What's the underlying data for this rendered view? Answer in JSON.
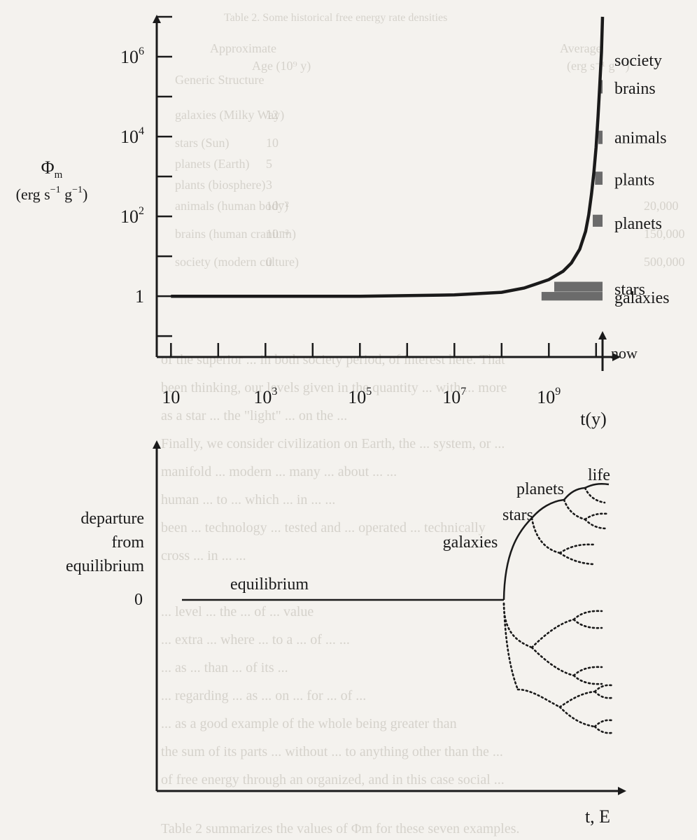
{
  "figure": {
    "paper_color": "#f4f2ee",
    "ink_color": "#1a1a1a",
    "bar_color": "#6b6b6b",
    "dotted_branches": true,
    "bleed_through": [
      "Table 2. Some historical free energy rate densities",
      "Approximate",
      "Average",
      "Age (10⁹ y)",
      "(erg s⁻¹ g⁻¹)",
      "Generic Structure",
      "galaxies (Milky Way)",
      "stars (Sun)",
      "planets (Earth)",
      "plants (biosphere)",
      "animals (human body)",
      "brains (human cranium)",
      "society (modern culture)",
      "20,000",
      "150,000",
      "500,000",
      "12",
      "10",
      "5",
      "3",
      "10⁻²",
      "10⁻³",
      "0",
      "of the superior ... in both society period, of interest here. That",
      "been thinking, our levels given in the quantity ... with ... more",
      "as a star ... the \"light\" ... on the ...",
      "Finally, we consider civilization on Earth, the ... system, or ...",
      "manifold ... modern ... many ... about ... ...",
      "human ... to ... which ... in ... ...",
      "been ... technology ... tested and ... operated ... technically",
      "cross ... in ... ...",
      "... level ... the ... of ... value",
      "... extra ... where ... to a ... of ... ...",
      "... as ... than ... of its ...",
      "... regarding ... as ... on ... for ... of ...",
      "... as a good example of the whole being greater than",
      "the sum of its parts ... without ... to anything other than the ...",
      "of free energy through an organized, and in this case social ...",
      "Table 2 summarizes the values of Φm for these seven examples."
    ]
  },
  "chart_data": [
    {
      "type": "line",
      "x_axis": {
        "label": "t(y)",
        "scale": "log",
        "range": [
          5,
          30000000000.0
        ],
        "ticks": [
          {
            "value": 10,
            "label": "10"
          },
          {
            "value": 1000,
            "label": "10",
            "sup": "3"
          },
          {
            "value": 100000,
            "label": "10",
            "sup": "5"
          },
          {
            "value": 10000000,
            "label": "10",
            "sup": "7"
          },
          {
            "value": 1000000000,
            "label": "10",
            "sup": "9"
          }
        ]
      },
      "y_axis": {
        "label_main": "Φ",
        "label_sub": "m",
        "unit_prefix": "(erg s",
        "unit_exp1": "−1",
        "unit_mid": " g",
        "unit_exp2": "−1",
        "unit_suffix": ")",
        "scale": "log",
        "range": [
          0.03,
          10000000.0
        ],
        "ticks": [
          {
            "value": 1,
            "label": "1",
            "sup": ""
          },
          {
            "value": 100,
            "label": "10",
            "sup": "2"
          },
          {
            "value": 10000,
            "label": "10",
            "sup": "4"
          },
          {
            "value": 1000000,
            "label": "10",
            "sup": "6"
          }
        ]
      },
      "now_label": "now",
      "now_t": 13700000000.0,
      "curve": {
        "x": [
          10,
          1000.0,
          100000.0,
          10000000.0,
          100000000.0,
          300000000.0,
          1000000000.0,
          2000000000.0,
          3000000000.0,
          4500000000.0,
          6000000000.0,
          7000000000.0,
          8000000000.0,
          9000000000.0,
          10000000000.0,
          11000000000.0,
          12000000000.0,
          13000000000.0,
          13700000000.0
        ],
        "y": [
          1,
          1,
          1,
          1.08,
          1.25,
          1.6,
          2.6,
          4.2,
          6.8,
          15,
          42,
          110,
          370,
          1300,
          5400,
          32000.0,
          200000.0,
          1300000.0,
          10000000.0
        ]
      },
      "bars": [
        {
          "name": "galaxies",
          "t_start": 700000000.0,
          "t_end": 13700000000.0,
          "phi_low": 0.78,
          "phi_high": 1.28
        },
        {
          "name": "stars",
          "t_start": 1300000000.0,
          "t_end": 13700000000.0,
          "phi_low": 1.3,
          "phi_high": 2.3
        },
        {
          "name": "planets",
          "t_start": 8500000000.0,
          "t_end": 13700000000.0,
          "phi_low": 55,
          "phi_high": 110
        },
        {
          "name": "plants",
          "t_start": 9500000000.0,
          "t_end": 13700000000.0,
          "phi_low": 620,
          "phi_high": 1320
        },
        {
          "name": "animals",
          "t_start": 11200000000.0,
          "t_end": 13700000000.0,
          "phi_low": 6500,
          "phi_high": 14000
        },
        {
          "name": "brains",
          "t_start": 12400000000.0,
          "t_end": 13700000000.0,
          "phi_low": 120000.0,
          "phi_high": 260000.0
        },
        {
          "name": "society",
          "t_start": 13300000000.0,
          "t_end": 13700000000.0,
          "phi_low": 620000.0,
          "phi_high": 1200000.0
        }
      ],
      "bar_labels": [
        {
          "text": "society",
          "phi": 850000.0
        },
        {
          "text": "brains",
          "phi": 170000.0
        },
        {
          "text": "animals",
          "phi": 9800
        },
        {
          "text": "plants",
          "phi": 870
        },
        {
          "text": "planets",
          "phi": 70
        },
        {
          "text": "stars",
          "phi": 1.58
        },
        {
          "text": "galaxies",
          "phi": 0.97
        }
      ]
    },
    {
      "type": "diagram",
      "y_label_lines": [
        "departure",
        "from",
        "equilibrium"
      ],
      "zero_label": "0",
      "x_label": "t, E",
      "baseline_label": "equilibrium",
      "branch_labels": [
        "galaxies",
        "stars",
        "planets",
        "life"
      ]
    }
  ]
}
